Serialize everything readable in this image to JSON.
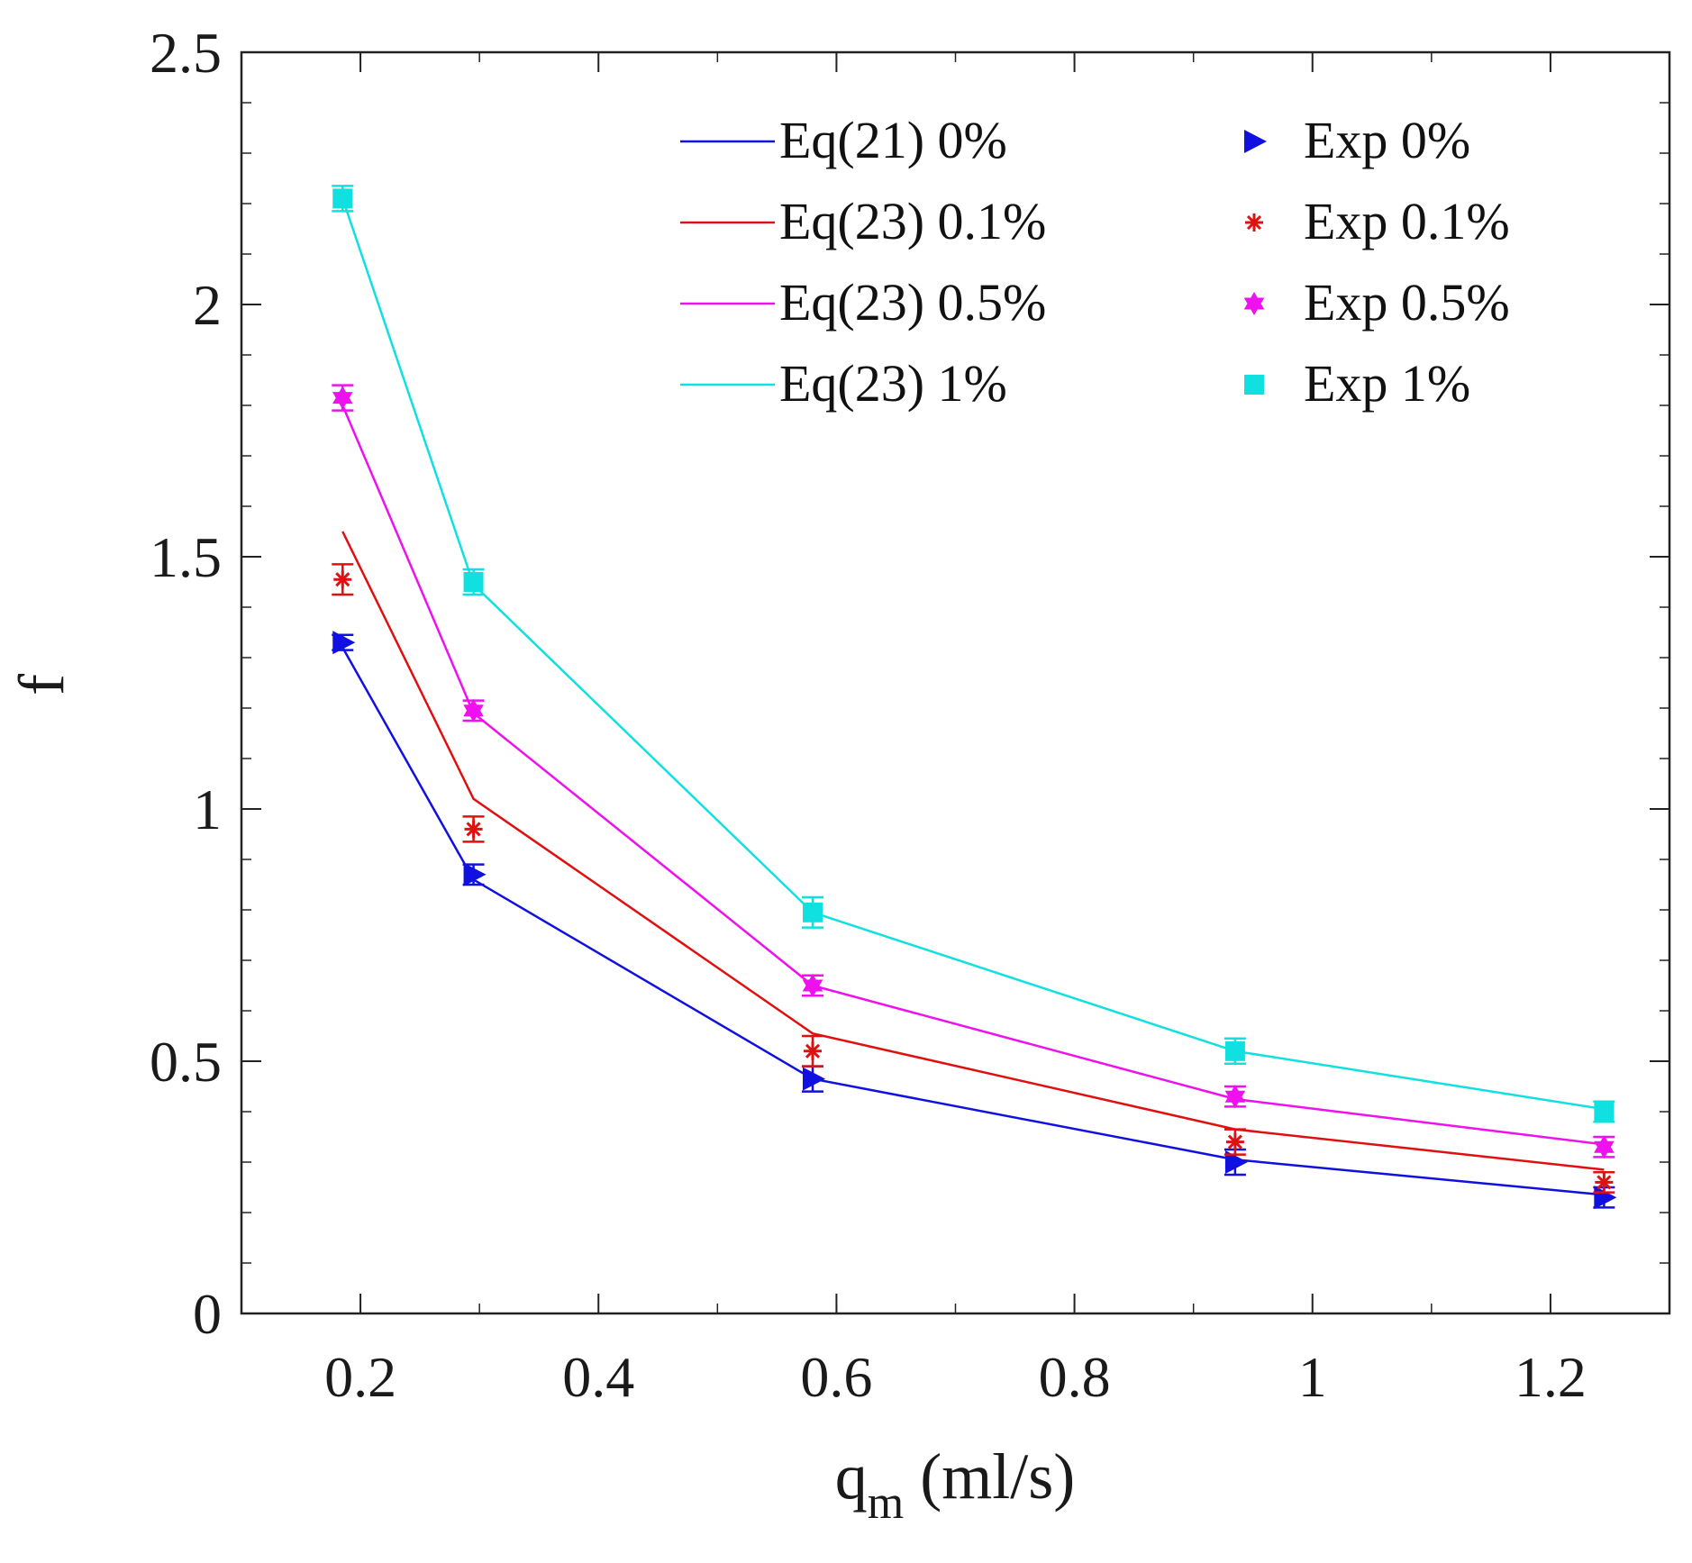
{
  "chart_data": {
    "type": "line",
    "title": "",
    "xlabel_main": "q",
    "xlabel_sub": "m",
    "xlabel_units": " (ml/s)",
    "ylabel": "f",
    "xlim": [
      0.1,
      1.3
    ],
    "ylim": [
      0,
      2.5
    ],
    "xticks": [
      {
        "value": 0.2,
        "label": "0.2"
      },
      {
        "value": 0.4,
        "label": "0.4"
      },
      {
        "value": 0.6,
        "label": "0.6"
      },
      {
        "value": 0.8,
        "label": "0.8"
      },
      {
        "value": 1.0,
        "label": "1"
      },
      {
        "value": 1.2,
        "label": "1.2"
      }
    ],
    "yticks": [
      {
        "value": 0,
        "label": "0"
      },
      {
        "value": 0.5,
        "label": "0.5"
      },
      {
        "value": 1.0,
        "label": "1"
      },
      {
        "value": 1.5,
        "label": "1.5"
      },
      {
        "value": 2.0,
        "label": "2"
      },
      {
        "value": 2.5,
        "label": "2.5"
      }
    ],
    "x": [
      0.185,
      0.295,
      0.58,
      0.935,
      1.245
    ],
    "lines": [
      {
        "name": "Eq(21)  0%",
        "color": "#1010e0",
        "values": [
          1.32,
          0.86,
          0.465,
          0.305,
          0.235
        ]
      },
      {
        "name": "Eq(23) 0.1%",
        "color": "#e01010",
        "values": [
          1.55,
          1.02,
          0.555,
          0.365,
          0.285
        ]
      },
      {
        "name": "Eq(23) 0.5%",
        "color": "#ee10ee",
        "values": [
          1.8,
          1.19,
          0.65,
          0.425,
          0.335
        ]
      },
      {
        "name": "Eq(23)  1%",
        "color": "#10e0e0",
        "values": [
          2.21,
          1.445,
          0.795,
          0.52,
          0.405
        ]
      }
    ],
    "experiments": [
      {
        "name": "Exp  0%",
        "color": "#1010e0",
        "marker": "triangle-right",
        "values": [
          1.33,
          0.87,
          0.465,
          0.3,
          0.23
        ],
        "errors": [
          0.015,
          0.02,
          0.025,
          0.025,
          0.02
        ]
      },
      {
        "name": "Exp 0.1%",
        "color": "#e01010",
        "marker": "star",
        "values": [
          1.455,
          0.96,
          0.52,
          0.34,
          0.26
        ],
        "errors": [
          0.03,
          0.025,
          0.03,
          0.025,
          0.02
        ]
      },
      {
        "name": "Exp 0.5%",
        "color": "#ee10ee",
        "marker": "hexagram",
        "values": [
          1.815,
          1.195,
          0.65,
          0.43,
          0.33
        ],
        "errors": [
          0.025,
          0.02,
          0.02,
          0.02,
          0.02
        ]
      },
      {
        "name": "Exp  1%",
        "color": "#10e0e0",
        "marker": "square",
        "values": [
          2.21,
          1.45,
          0.795,
          0.52,
          0.4
        ],
        "errors": [
          0.025,
          0.025,
          0.03,
          0.025,
          0.02
        ]
      }
    ],
    "legend_position": "top-right",
    "grid": false
  }
}
